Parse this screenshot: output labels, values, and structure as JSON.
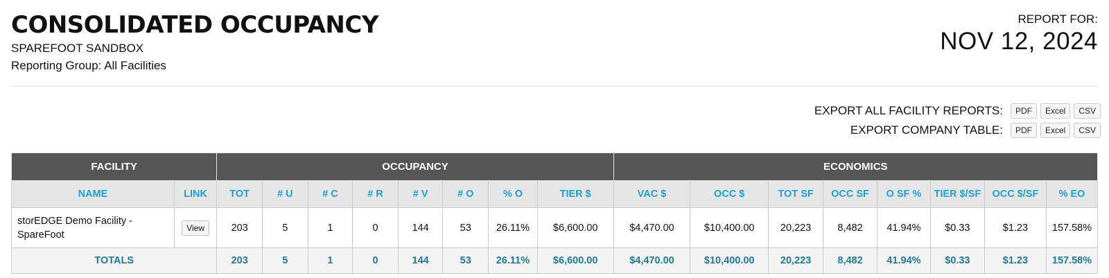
{
  "header": {
    "title": "CONSOLIDATED OCCUPANCY",
    "subtitle": "SPAREFOOT SANDBOX",
    "reporting_group": "Reporting Group: All Facilities",
    "report_for_label": "REPORT FOR:",
    "report_date": "NOV 12, 2024"
  },
  "exports": {
    "all_facility_label": "EXPORT ALL FACILITY REPORTS:",
    "company_table_label": "EXPORT COMPANY TABLE:",
    "pdf": "PDF",
    "excel": "Excel",
    "csv": "CSV"
  },
  "table": {
    "groups": {
      "facility": "FACILITY",
      "occupancy": "OCCUPANCY",
      "economics": "ECONOMICS"
    },
    "columns": [
      "NAME",
      "LINK",
      "TOT",
      "# U",
      "# C",
      "# R",
      "# V",
      "# O",
      "% O",
      "TIER $",
      "VAC $",
      "OCC $",
      "TOT SF",
      "OCC SF",
      "O SF %",
      "TIER $/SF",
      "OCC $/SF",
      "% EO"
    ],
    "row": {
      "name_line1": "storEDGE Demo Facility -",
      "name_line2": "SpareFoot",
      "link": "View",
      "values": [
        "203",
        "5",
        "1",
        "0",
        "144",
        "53",
        "26.11%",
        "$6,600.00",
        "$4,470.00",
        "$10,400.00",
        "20,223",
        "8,482",
        "41.94%",
        "$0.33",
        "$1.23",
        "157.58%"
      ]
    },
    "totals": {
      "label": "TOTALS",
      "values": [
        "203",
        "5",
        "1",
        "0",
        "144",
        "53",
        "26.11%",
        "$6,600.00",
        "$4,470.00",
        "$10,400.00",
        "20,223",
        "8,482",
        "41.94%",
        "$0.33",
        "$1.23",
        "157.58%"
      ]
    }
  },
  "colors": {
    "header_bg": "#555555",
    "column_header_text": "#1ea0d4",
    "totals_text": "#1e7a9a"
  }
}
